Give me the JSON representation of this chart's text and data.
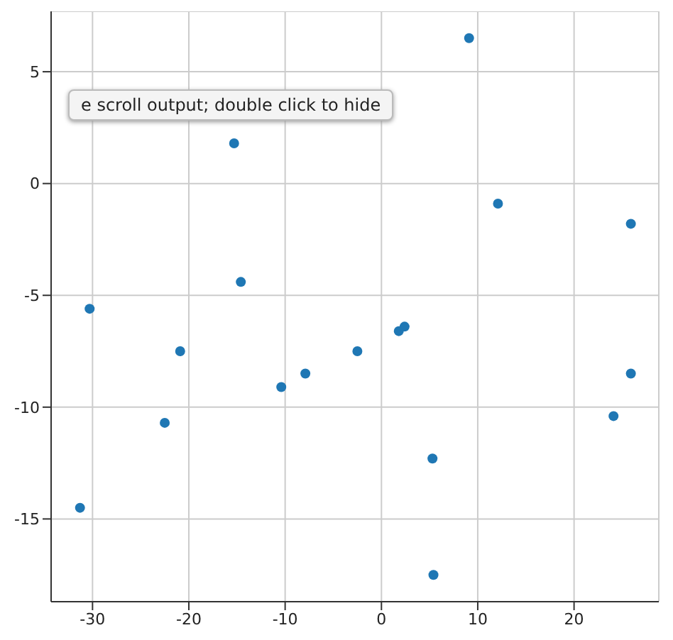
{
  "chart_data": {
    "type": "scatter",
    "color": "#1f77b4",
    "marker": "circle",
    "grid": true,
    "x": [
      9.1,
      -15.3,
      12.1,
      25.9,
      -14.6,
      -30.3,
      -20.9,
      -2.5,
      1.8,
      2.4,
      -7.9,
      -10.4,
      -22.5,
      25.9,
      24.1,
      5.3,
      -31.3,
      5.4
    ],
    "values": [
      6.5,
      1.8,
      -0.9,
      -1.8,
      -4.4,
      -5.6,
      -7.5,
      -7.5,
      -6.6,
      -6.4,
      -8.5,
      -9.1,
      -10.7,
      -8.5,
      -10.4,
      -12.3,
      -14.5,
      -17.5
    ],
    "xlim": [
      -34.3,
      28.8
    ],
    "ylim": [
      -18.7,
      7.7
    ],
    "xticks": [
      -30,
      -20,
      -10,
      0,
      10,
      20
    ],
    "yticks": [
      -15,
      -10,
      -5,
      0,
      5
    ],
    "annotations": [
      "e scroll output; double click to hide"
    ]
  }
}
